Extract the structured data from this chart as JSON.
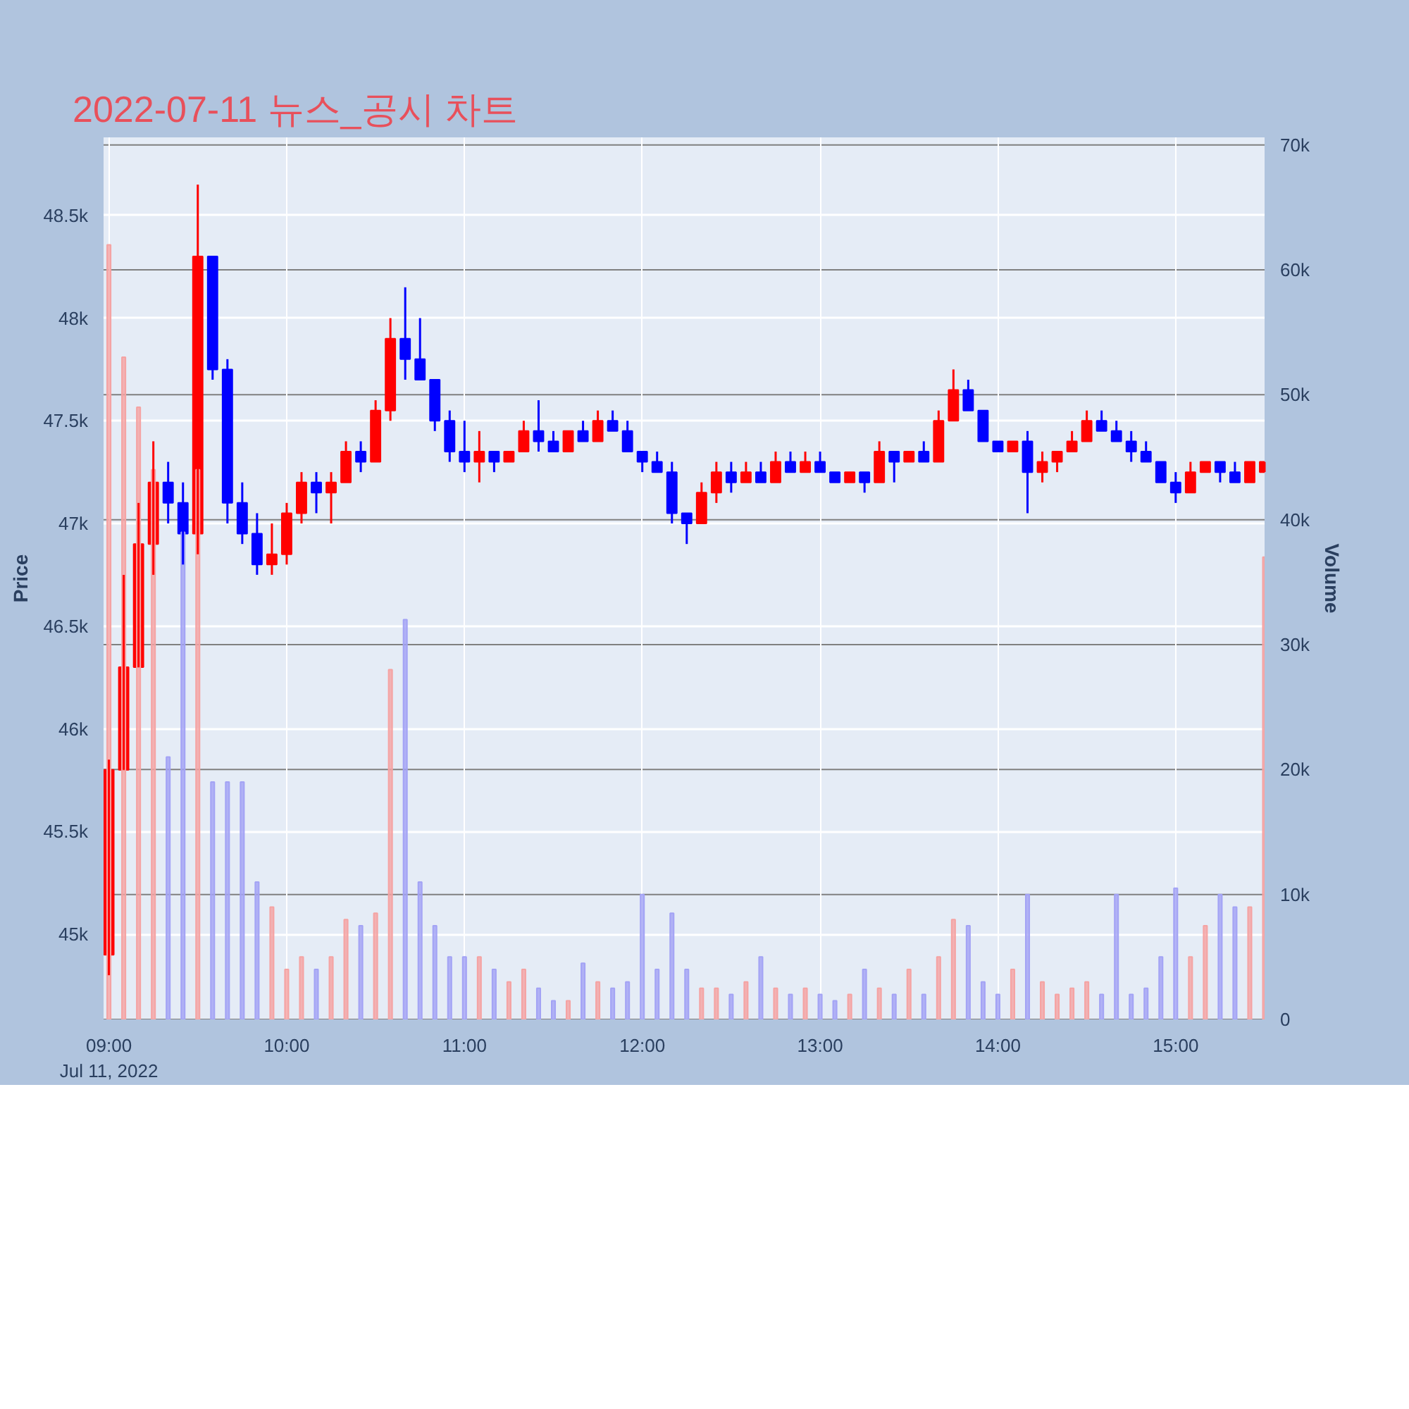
{
  "chart_data": {
    "type": "candlestick",
    "title": "2022-07-11 뉴스_공시 차트",
    "ylabel": "Price",
    "y2label": "Volume",
    "x": [
      9,
      9.0833,
      9.1667,
      9.25,
      9.3333,
      9.4167,
      9.5,
      9.5833,
      9.6667,
      9.75,
      9.8333,
      9.9167,
      10,
      10.0833,
      10.1667,
      10.25,
      10.3333,
      10.4167,
      10.5,
      10.5833,
      10.6667,
      10.75,
      10.8333,
      10.9167,
      11,
      11.0833,
      11.1667,
      11.25,
      11.3333,
      11.4167,
      11.5,
      11.5833,
      11.6667,
      11.75,
      11.8333,
      11.9167,
      12,
      12.0833,
      12.1667,
      12.25,
      12.3333,
      12.4167,
      12.5,
      12.5833,
      12.6667,
      12.75,
      12.8333,
      12.9167,
      13,
      13.0833,
      13.1667,
      13.25,
      13.3333,
      13.4167,
      13.5,
      13.5833,
      13.6667,
      13.75,
      13.8333,
      13.9167,
      14,
      14.0833,
      14.1667,
      14.25,
      14.3333,
      14.4167,
      14.5,
      14.5833,
      14.6667,
      14.75,
      14.8333,
      14.9167,
      15,
      15.0833,
      15.1667,
      15.25,
      15.3333,
      15.4167,
      15.5
    ],
    "series": [
      {
        "colors": [
          "#ff0000",
          "#ff0000",
          "#ff0000",
          "#ff0000",
          "#0000ff",
          "#0000ff",
          "#ff0000",
          "#0000ff",
          "#0000ff",
          "#0000ff",
          "#0000ff",
          "#ff0000",
          "#ff0000",
          "#ff0000",
          "#0000ff",
          "#ff0000",
          "#ff0000",
          "#0000ff",
          "#ff0000",
          "#ff0000",
          "#0000ff",
          "#0000ff",
          "#0000ff",
          "#0000ff",
          "#0000ff",
          "#ff0000",
          "#0000ff",
          "#ff0000",
          "#ff0000",
          "#0000ff",
          "#0000ff",
          "#ff0000",
          "#0000ff",
          "#ff0000",
          "#0000ff",
          "#0000ff",
          "#0000ff",
          "#0000ff",
          "#0000ff",
          "#0000ff",
          "#ff0000",
          "#ff0000",
          "#0000ff",
          "#ff0000",
          "#0000ff",
          "#ff0000",
          "#0000ff",
          "#ff0000",
          "#0000ff",
          "#0000ff",
          "#ff0000",
          "#0000ff",
          "#ff0000",
          "#0000ff",
          "#ff0000",
          "#0000ff",
          "#ff0000",
          "#ff0000",
          "#0000ff",
          "#0000ff",
          "#0000ff",
          "#ff0000",
          "#0000ff",
          "#ff0000",
          "#ff0000",
          "#ff0000",
          "#ff0000",
          "#0000ff",
          "#0000ff",
          "#0000ff",
          "#0000ff",
          "#0000ff",
          "#0000ff",
          "#ff0000",
          "#ff0000",
          "#0000ff",
          "#0000ff",
          "#ff0000",
          "#ff0000"
        ],
        "ohlc": [
          [
            44900,
            45850,
            44800,
            45800
          ],
          [
            45800,
            46750,
            45800,
            46300
          ],
          [
            46300,
            47100,
            46300,
            46900
          ],
          [
            46900,
            47400,
            46750,
            47200
          ],
          [
            47200,
            47300,
            47000,
            47100
          ],
          [
            47100,
            47200,
            46800,
            46950
          ],
          [
            46950,
            48650,
            46850,
            48300
          ],
          [
            48300,
            48300,
            47700,
            47750
          ],
          [
            47750,
            47800,
            47000,
            47100
          ],
          [
            47100,
            47200,
            46900,
            46950
          ],
          [
            46950,
            47050,
            46750,
            46800
          ],
          [
            46800,
            47000,
            46750,
            46850
          ],
          [
            46850,
            47100,
            46800,
            47050
          ],
          [
            47050,
            47250,
            47000,
            47200
          ],
          [
            47200,
            47250,
            47050,
            47150
          ],
          [
            47150,
            47250,
            47000,
            47200
          ],
          [
            47200,
            47400,
            47200,
            47350
          ],
          [
            47350,
            47400,
            47250,
            47300
          ],
          [
            47300,
            47600,
            47300,
            47550
          ],
          [
            47550,
            48000,
            47500,
            47900
          ],
          [
            47900,
            48150,
            47700,
            47800
          ],
          [
            47800,
            48000,
            47700,
            47700
          ],
          [
            47700,
            47700,
            47450,
            47500
          ],
          [
            47500,
            47550,
            47300,
            47350
          ],
          [
            47350,
            47500,
            47250,
            47300
          ],
          [
            47300,
            47450,
            47200,
            47350
          ],
          [
            47350,
            47350,
            47250,
            47300
          ],
          [
            47300,
            47350,
            47300,
            47350
          ],
          [
            47350,
            47500,
            47350,
            47450
          ],
          [
            47450,
            47600,
            47350,
            47400
          ],
          [
            47400,
            47450,
            47350,
            47350
          ],
          [
            47350,
            47450,
            47350,
            47450
          ],
          [
            47450,
            47500,
            47400,
            47400
          ],
          [
            47400,
            47550,
            47400,
            47500
          ],
          [
            47500,
            47550,
            47450,
            47450
          ],
          [
            47450,
            47500,
            47350,
            47350
          ],
          [
            47350,
            47350,
            47250,
            47300
          ],
          [
            47300,
            47350,
            47250,
            47250
          ],
          [
            47250,
            47300,
            47000,
            47050
          ],
          [
            47050,
            47050,
            46900,
            47000
          ],
          [
            47000,
            47200,
            47000,
            47150
          ],
          [
            47150,
            47300,
            47100,
            47250
          ],
          [
            47250,
            47300,
            47150,
            47200
          ],
          [
            47200,
            47300,
            47200,
            47250
          ],
          [
            47250,
            47300,
            47200,
            47200
          ],
          [
            47200,
            47350,
            47200,
            47300
          ],
          [
            47300,
            47350,
            47250,
            47250
          ],
          [
            47250,
            47350,
            47250,
            47300
          ],
          [
            47300,
            47350,
            47250,
            47250
          ],
          [
            47250,
            47250,
            47200,
            47200
          ],
          [
            47200,
            47250,
            47200,
            47250
          ],
          [
            47250,
            47250,
            47150,
            47200
          ],
          [
            47200,
            47400,
            47200,
            47350
          ],
          [
            47350,
            47350,
            47200,
            47300
          ],
          [
            47300,
            47350,
            47300,
            47350
          ],
          [
            47350,
            47400,
            47300,
            47300
          ],
          [
            47300,
            47550,
            47300,
            47500
          ],
          [
            47500,
            47750,
            47500,
            47650
          ],
          [
            47650,
            47700,
            47550,
            47550
          ],
          [
            47550,
            47550,
            47400,
            47400
          ],
          [
            47400,
            47400,
            47350,
            47350
          ],
          [
            47350,
            47400,
            47350,
            47400
          ],
          [
            47400,
            47450,
            47050,
            47250
          ],
          [
            47250,
            47350,
            47200,
            47300
          ],
          [
            47300,
            47350,
            47250,
            47350
          ],
          [
            47350,
            47450,
            47350,
            47400
          ],
          [
            47400,
            47550,
            47400,
            47500
          ],
          [
            47500,
            47550,
            47450,
            47450
          ],
          [
            47450,
            47500,
            47400,
            47400
          ],
          [
            47400,
            47450,
            47300,
            47350
          ],
          [
            47350,
            47400,
            47300,
            47300
          ],
          [
            47300,
            47300,
            47200,
            47200
          ],
          [
            47200,
            47250,
            47100,
            47150
          ],
          [
            47150,
            47300,
            47150,
            47250
          ],
          [
            47250,
            47300,
            47250,
            47300
          ],
          [
            47300,
            47300,
            47200,
            47250
          ],
          [
            47250,
            47300,
            47200,
            47200
          ],
          [
            47200,
            47300,
            47200,
            47300
          ],
          [
            47250,
            47300,
            47250,
            47300
          ]
        ]
      },
      {
        "type": "bar",
        "axis": "y2",
        "colors": [
          "#f5a3a3",
          "#f5a3a3",
          "#f5a3a3",
          "#f5a3a3",
          "#a3a3f5",
          "#a3a3f5",
          "#f5a3a3",
          "#a3a3f5",
          "#a3a3f5",
          "#a3a3f5",
          "#a3a3f5",
          "#f5a3a3",
          "#f5a3a3",
          "#f5a3a3",
          "#a3a3f5",
          "#f5a3a3",
          "#f5a3a3",
          "#a3a3f5",
          "#f5a3a3",
          "#f5a3a3",
          "#a3a3f5",
          "#a3a3f5",
          "#a3a3f5",
          "#a3a3f5",
          "#a3a3f5",
          "#f5a3a3",
          "#a3a3f5",
          "#f5a3a3",
          "#f5a3a3",
          "#a3a3f5",
          "#a3a3f5",
          "#f5a3a3",
          "#a3a3f5",
          "#f5a3a3",
          "#a3a3f5",
          "#a3a3f5",
          "#a3a3f5",
          "#a3a3f5",
          "#a3a3f5",
          "#a3a3f5",
          "#f5a3a3",
          "#f5a3a3",
          "#a3a3f5",
          "#f5a3a3",
          "#a3a3f5",
          "#f5a3a3",
          "#a3a3f5",
          "#f5a3a3",
          "#a3a3f5",
          "#a3a3f5",
          "#f5a3a3",
          "#a3a3f5",
          "#f5a3a3",
          "#a3a3f5",
          "#f5a3a3",
          "#a3a3f5",
          "#f5a3a3",
          "#f5a3a3",
          "#a3a3f5",
          "#a3a3f5",
          "#a3a3f5",
          "#f5a3a3",
          "#a3a3f5",
          "#f5a3a3",
          "#f5a3a3",
          "#f5a3a3",
          "#f5a3a3",
          "#a3a3f5",
          "#a3a3f5",
          "#a3a3f5",
          "#a3a3f5",
          "#a3a3f5",
          "#a3a3f5",
          "#f5a3a3",
          "#f5a3a3",
          "#a3a3f5",
          "#a3a3f5",
          "#f5a3a3",
          "#f5a3a3"
        ],
        "values": [
          62000,
          53000,
          49000,
          44000,
          21000,
          39000,
          44000,
          19000,
          19000,
          19000,
          11000,
          9000,
          4000,
          5000,
          4000,
          5000,
          8000,
          7500,
          8500,
          28000,
          32000,
          11000,
          7500,
          5000,
          5000,
          5000,
          4000,
          3000,
          4000,
          2500,
          1500,
          1500,
          4500,
          3000,
          2500,
          3000,
          10000,
          4000,
          8500,
          4000,
          2500,
          2500,
          2000,
          3000,
          5000,
          2500,
          2000,
          2500,
          2000,
          1500,
          2000,
          4000,
          2500,
          2000,
          4000,
          2000,
          5000,
          8000,
          7500,
          3000,
          2000,
          4000,
          10000,
          3000,
          2000,
          2500,
          3000,
          2000,
          10000,
          2000,
          2500,
          5000,
          10500,
          5000,
          7500,
          10000,
          9000,
          9000,
          37000
        ]
      }
    ],
    "xlim": [
      8.97,
      15.5
    ],
    "xticks": [
      {
        "value": 9,
        "label": "09:00\nJul 11, 2022"
      },
      {
        "value": 10,
        "label": "10:00"
      },
      {
        "value": 11,
        "label": "11:00"
      },
      {
        "value": 12,
        "label": "12:00"
      },
      {
        "value": 13,
        "label": "13:00"
      },
      {
        "value": 14,
        "label": "14:00"
      },
      {
        "value": 15,
        "label": "15:00"
      }
    ],
    "ylim": [
      44585,
      48880
    ],
    "yticks": [
      {
        "value": 45000,
        "label": "45k"
      },
      {
        "value": 45500,
        "label": "45.5k"
      },
      {
        "value": 46000,
        "label": "46k"
      },
      {
        "value": 46500,
        "label": "46.5k"
      },
      {
        "value": 47000,
        "label": "47k"
      },
      {
        "value": 47500,
        "label": "47.5k"
      },
      {
        "value": 48000,
        "label": "48k"
      },
      {
        "value": 48500,
        "label": "48.5k"
      }
    ],
    "y2lim": [
      0,
      70600
    ],
    "y2ticks": [
      0,
      {
        "value": 10000,
        "label": "10k"
      },
      {
        "value": 20000,
        "label": "20k"
      },
      {
        "value": 30000,
        "label": "30k"
      },
      {
        "value": 40000,
        "label": "40k"
      },
      {
        "value": 50000,
        "label": "50k"
      },
      {
        "value": 60000,
        "label": "60k"
      },
      {
        "value": 70000,
        "label": "70k"
      }
    ],
    "grid": true
  }
}
